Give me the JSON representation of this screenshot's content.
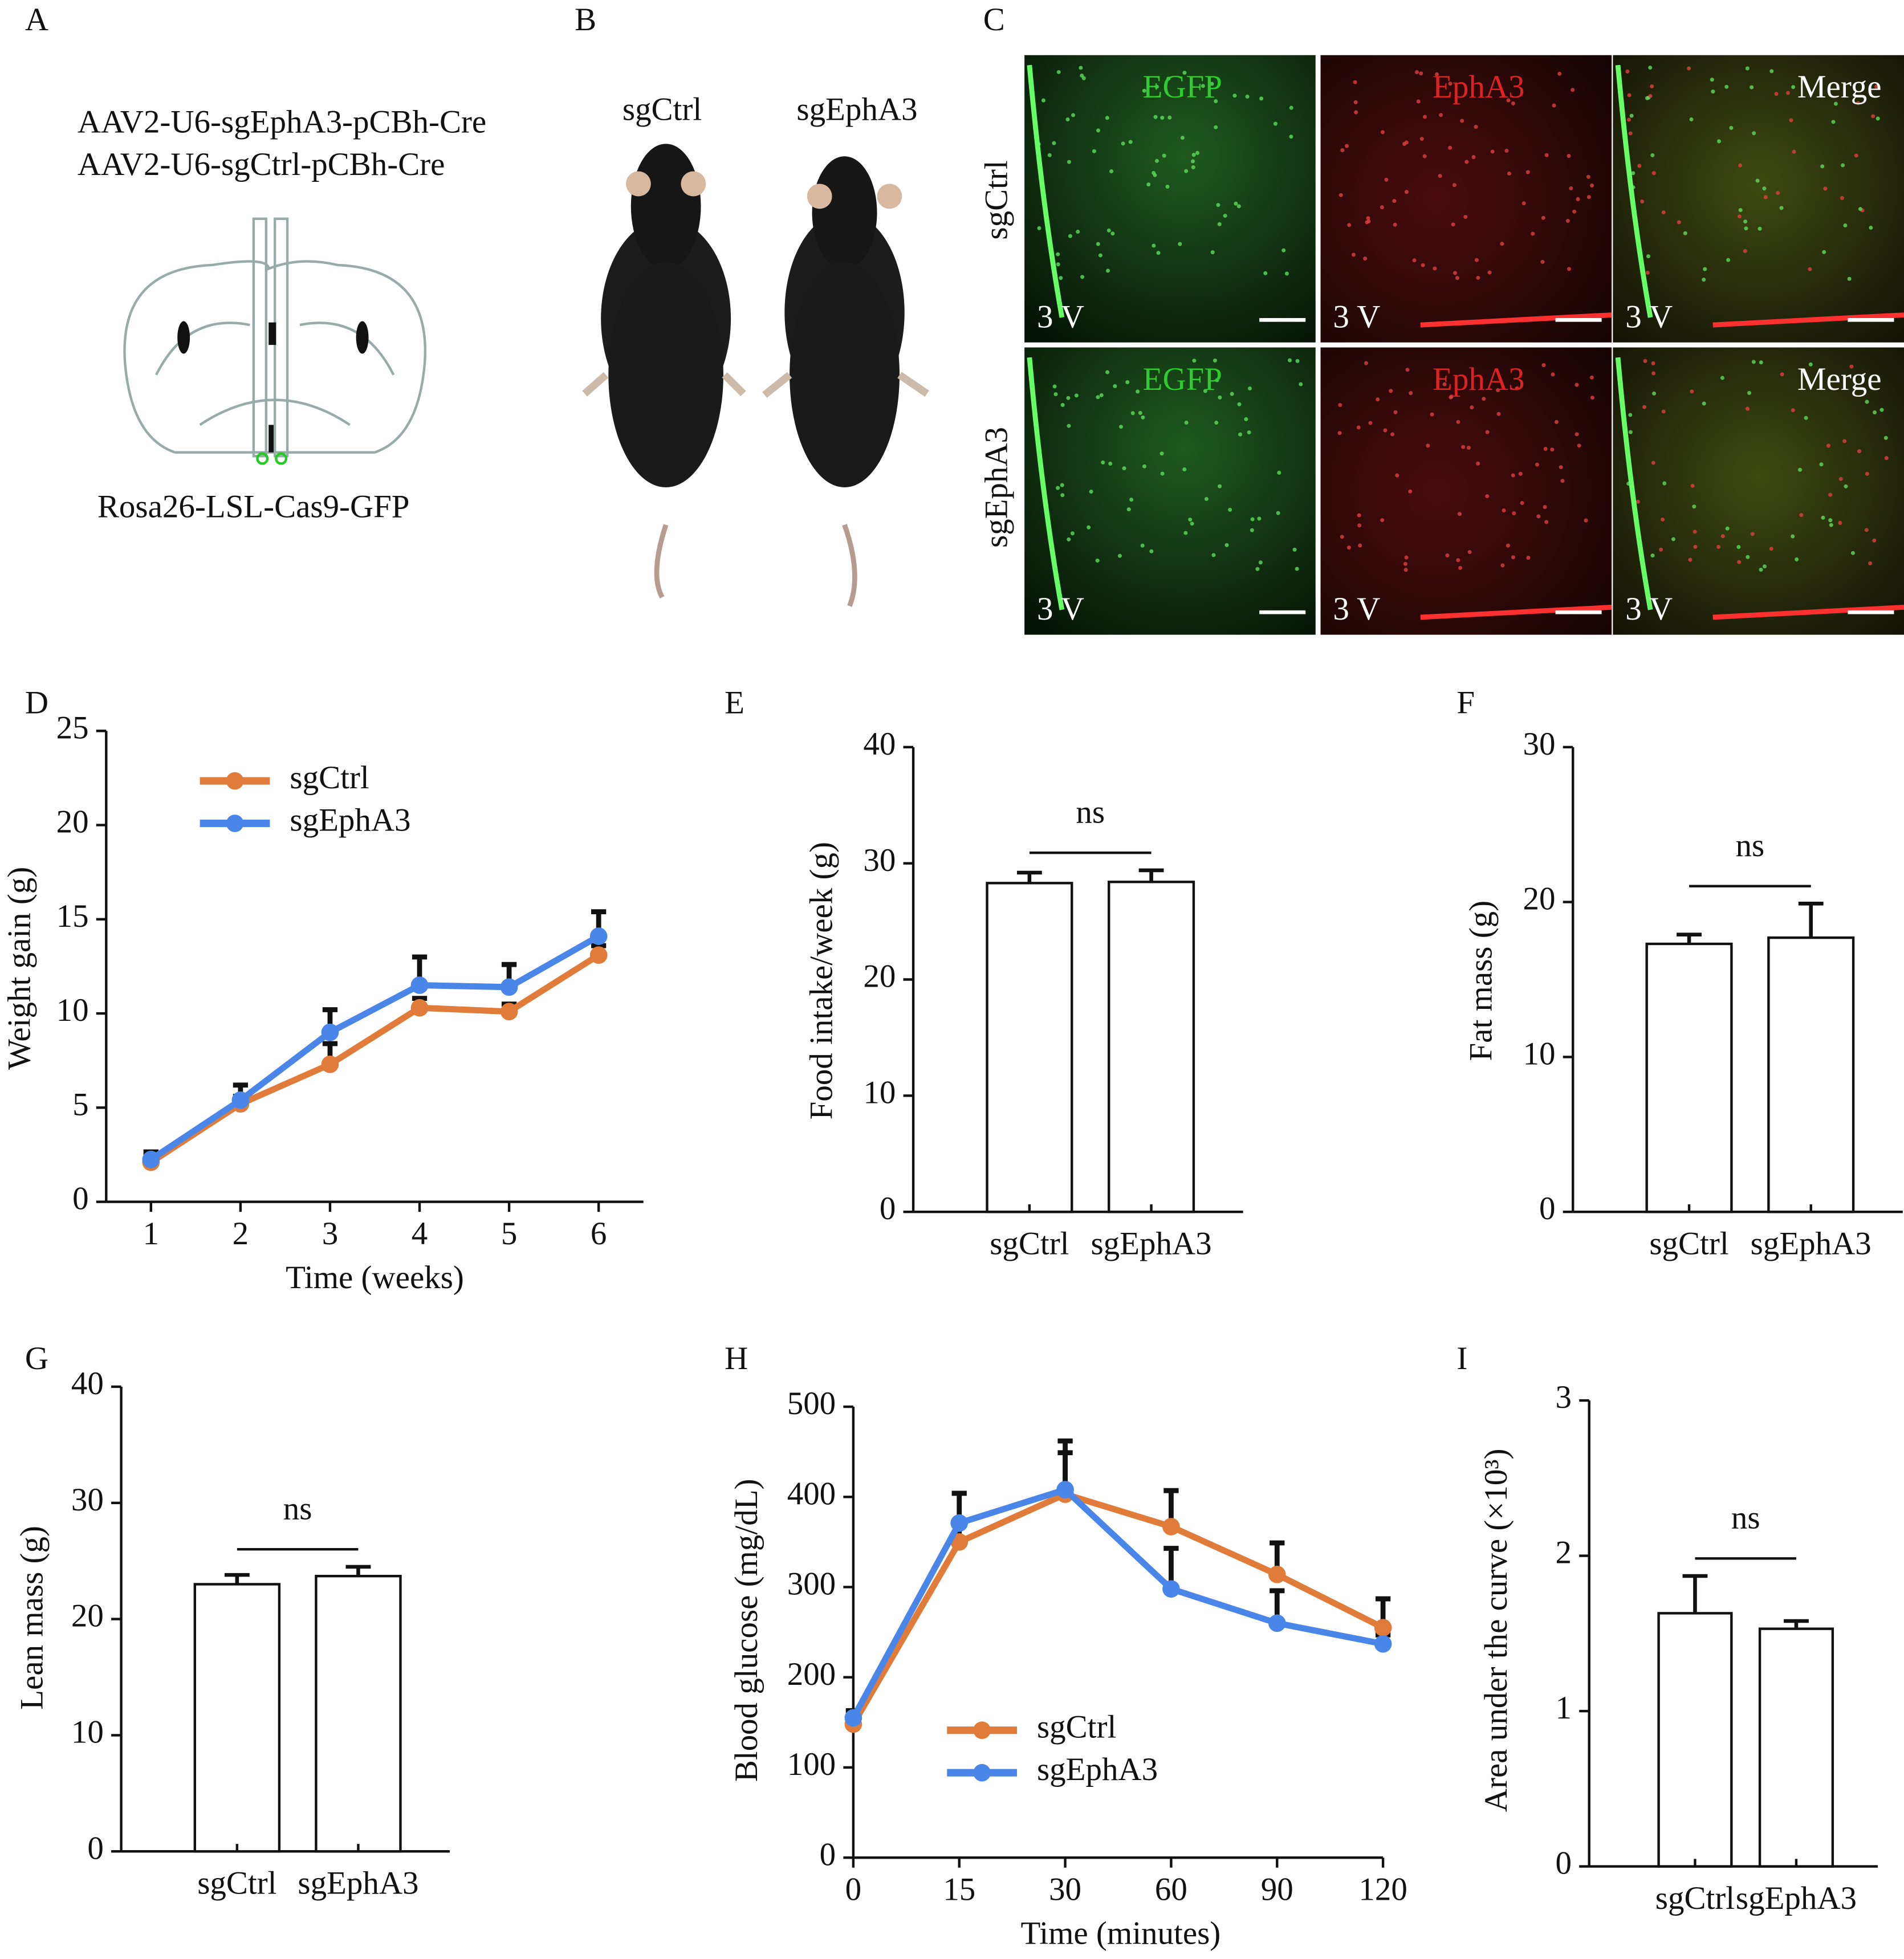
{
  "figure": {
    "panel_a": {
      "label": "A",
      "constructs": [
        "AAV2-U6-sgEphA3-pCBh-Cre",
        "AAV2-U6-sgCtrl-pCBh-Cre"
      ],
      "mouse_line": "Rosa26-LSL-Cas9-GFP"
    },
    "panel_b": {
      "label": "B",
      "groups": [
        "sgCtrl",
        "sgEphA3"
      ]
    },
    "panel_c": {
      "label": "C",
      "rows": [
        "sgCtrl",
        "sgEphA3"
      ],
      "channels": [
        "EGFP",
        "EphA3",
        "Merge"
      ],
      "region": "3 V"
    }
  },
  "chart_data": [
    {
      "type": "line",
      "label": "D",
      "x_label": "Time (weeks)",
      "y_label": "Weight gain (g)",
      "x": [
        1,
        2,
        3,
        4,
        5,
        6
      ],
      "xlim": [
        0.5,
        6.5
      ],
      "xticks": [
        1,
        2,
        3,
        4,
        5,
        6
      ],
      "ylim": [
        0,
        25
      ],
      "yticks": [
        0,
        5,
        10,
        15,
        20,
        25
      ],
      "legend": "upper left",
      "series": [
        {
          "name": "sgCtrl",
          "color": "#e07b39",
          "values": [
            2.1,
            5.2,
            7.3,
            10.3,
            10.1,
            13.1
          ],
          "errors": [
            0.3,
            0.4,
            1.1,
            0.5,
            0.4,
            0.5
          ]
        },
        {
          "name": "sgEphA3",
          "color": "#4a86e8",
          "values": [
            2.25,
            5.4,
            9.0,
            11.5,
            11.4,
            14.1
          ],
          "errors": [
            0.4,
            0.8,
            1.2,
            1.5,
            1.2,
            1.3
          ]
        }
      ]
    },
    {
      "type": "bar",
      "label": "E",
      "y_label": "Food intake/week (g)",
      "categories": [
        "sgCtrl",
        "sgEphA3"
      ],
      "values": [
        28.3,
        28.4
      ],
      "errors": [
        0.9,
        1.0
      ],
      "color": "#ffffff",
      "ylim": [
        0,
        40
      ],
      "yticks": [
        0,
        10,
        20,
        30,
        40
      ],
      "annotation": "ns"
    },
    {
      "type": "bar",
      "label": "F",
      "y_label": "Fat mass (g)",
      "categories": [
        "sgCtrl",
        "sgEphA3"
      ],
      "values": [
        17.3,
        17.7
      ],
      "errors": [
        0.6,
        2.2
      ],
      "color": "#ffffff",
      "ylim": [
        0,
        30
      ],
      "yticks": [
        0,
        10,
        20,
        30
      ],
      "annotation": "ns"
    },
    {
      "type": "bar",
      "label": "G",
      "y_label": "Lean mass (g)",
      "categories": [
        "sgCtrl",
        "sgEphA3"
      ],
      "values": [
        23.0,
        23.7
      ],
      "errors": [
        0.8,
        0.8
      ],
      "color": "#ffffff",
      "ylim": [
        0,
        40
      ],
      "yticks": [
        0,
        10,
        20,
        30,
        40
      ],
      "annotation": "ns"
    },
    {
      "type": "line",
      "label": "H",
      "x_label": "Time (minutes)",
      "y_label": "Blood glucose (mg/dL)",
      "categories": [
        "0",
        "15",
        "30",
        "60",
        "90",
        "120"
      ],
      "ylim": [
        0,
        500
      ],
      "yticks": [
        0,
        100,
        200,
        300,
        400,
        500
      ],
      "legend": "lower left",
      "series": [
        {
          "name": "sgCtrl",
          "color": "#e07b39",
          "values": [
            148,
            350,
            403,
            367,
            314,
            255
          ],
          "errors": [
            8,
            20,
            46,
            40,
            35,
            32
          ]
        },
        {
          "name": "sgEphA3",
          "color": "#4a86e8",
          "values": [
            155,
            371,
            408,
            298,
            260,
            237
          ],
          "errors": [
            8,
            33,
            54,
            45,
            36,
            10
          ]
        }
      ]
    },
    {
      "type": "bar",
      "label": "I",
      "y_label": "Area under the curve (×10³)",
      "categories": [
        "sgCtrl",
        "sgEphA3"
      ],
      "values": [
        1.63,
        1.53
      ],
      "errors": [
        0.24,
        0.05
      ],
      "color": "#ffffff",
      "ylim": [
        0,
        3
      ],
      "yticks": [
        0,
        1,
        2,
        3
      ],
      "annotation": "ns"
    }
  ]
}
